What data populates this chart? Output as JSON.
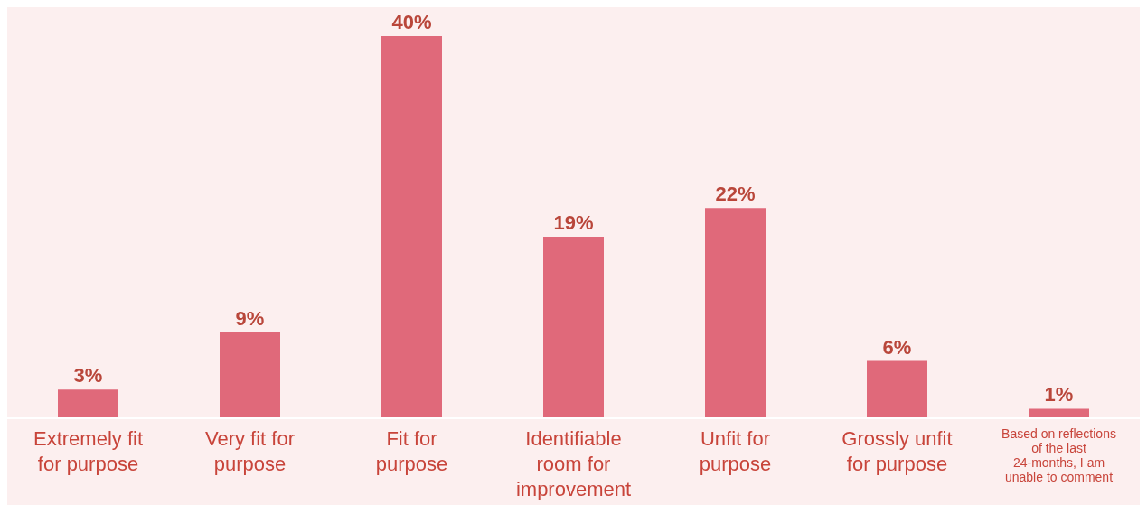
{
  "chart_data": {
    "type": "bar",
    "categories": [
      "Extremely fit for purpose",
      "Very fit for purpose",
      "Fit for purpose",
      "Identifiable room for improvement",
      "Unfit for purpose",
      "Grossly unfit for purpose",
      "Based on reflections of the last 24-months, I am unable to comment"
    ],
    "values": [
      3,
      9,
      40,
      19,
      22,
      6,
      1
    ],
    "value_labels": [
      "3%",
      "9%",
      "40%",
      "19%",
      "22%",
      "6%",
      "1%"
    ],
    "color": "#e0697a",
    "grid": false,
    "legend": false
  }
}
